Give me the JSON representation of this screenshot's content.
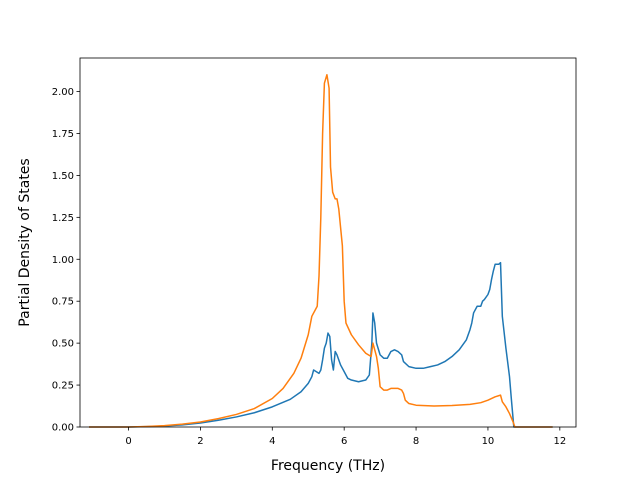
{
  "chart_data": {
    "type": "line",
    "title": "",
    "xlabel": "Frequency (THz)",
    "ylabel": "Partial Density of States",
    "xlim": [
      -1.35,
      12.45
    ],
    "ylim": [
      0.0,
      2.2
    ],
    "xticks": [
      0,
      2,
      4,
      6,
      8,
      10,
      12
    ],
    "xtick_labels": [
      "0",
      "2",
      "4",
      "6",
      "8",
      "10",
      "12"
    ],
    "yticks": [
      0.0,
      0.25,
      0.5,
      0.75,
      1.0,
      1.25,
      1.5,
      1.75,
      2.0
    ],
    "ytick_labels": [
      "0.00",
      "0.25",
      "0.50",
      "0.75",
      "1.00",
      "1.25",
      "1.50",
      "1.75",
      "2.00"
    ],
    "grid": false,
    "legend": "none",
    "series": [
      {
        "color": "#1f77b4",
        "points": [
          [
            -1.1,
            0.0
          ],
          [
            0.0,
            0.0
          ],
          [
            0.5,
            0.002
          ],
          [
            1.0,
            0.006
          ],
          [
            1.5,
            0.013
          ],
          [
            2.0,
            0.024
          ],
          [
            2.5,
            0.04
          ],
          [
            3.0,
            0.06
          ],
          [
            3.5,
            0.085
          ],
          [
            4.0,
            0.12
          ],
          [
            4.5,
            0.165
          ],
          [
            4.8,
            0.21
          ],
          [
            5.0,
            0.26
          ],
          [
            5.1,
            0.3
          ],
          [
            5.15,
            0.34
          ],
          [
            5.3,
            0.32
          ],
          [
            5.35,
            0.34
          ],
          [
            5.4,
            0.4
          ],
          [
            5.45,
            0.47
          ],
          [
            5.5,
            0.5
          ],
          [
            5.55,
            0.56
          ],
          [
            5.6,
            0.54
          ],
          [
            5.65,
            0.4
          ],
          [
            5.7,
            0.34
          ],
          [
            5.75,
            0.45
          ],
          [
            5.8,
            0.43
          ],
          [
            5.9,
            0.37
          ],
          [
            6.0,
            0.33
          ],
          [
            6.1,
            0.29
          ],
          [
            6.2,
            0.28
          ],
          [
            6.4,
            0.27
          ],
          [
            6.6,
            0.28
          ],
          [
            6.7,
            0.31
          ],
          [
            6.77,
            0.5
          ],
          [
            6.8,
            0.68
          ],
          [
            6.85,
            0.62
          ],
          [
            6.9,
            0.5
          ],
          [
            7.0,
            0.43
          ],
          [
            7.1,
            0.41
          ],
          [
            7.2,
            0.41
          ],
          [
            7.3,
            0.45
          ],
          [
            7.4,
            0.46
          ],
          [
            7.5,
            0.45
          ],
          [
            7.6,
            0.43
          ],
          [
            7.65,
            0.39
          ],
          [
            7.8,
            0.36
          ],
          [
            8.0,
            0.35
          ],
          [
            8.2,
            0.35
          ],
          [
            8.4,
            0.36
          ],
          [
            8.6,
            0.37
          ],
          [
            8.8,
            0.39
          ],
          [
            9.0,
            0.42
          ],
          [
            9.2,
            0.46
          ],
          [
            9.4,
            0.52
          ],
          [
            9.5,
            0.58
          ],
          [
            9.55,
            0.62
          ],
          [
            9.6,
            0.68
          ],
          [
            9.7,
            0.72
          ],
          [
            9.8,
            0.72
          ],
          [
            9.85,
            0.75
          ],
          [
            9.9,
            0.76
          ],
          [
            10.0,
            0.79
          ],
          [
            10.05,
            0.82
          ],
          [
            10.1,
            0.88
          ],
          [
            10.15,
            0.93
          ],
          [
            10.2,
            0.97
          ],
          [
            10.3,
            0.97
          ],
          [
            10.35,
            0.98
          ],
          [
            10.4,
            0.66
          ],
          [
            10.5,
            0.47
          ],
          [
            10.6,
            0.3
          ],
          [
            10.65,
            0.17
          ],
          [
            10.72,
            0.0
          ],
          [
            11.8,
            0.0
          ]
        ]
      },
      {
        "color": "#ff7f0e",
        "points": [
          [
            -1.1,
            0.0
          ],
          [
            0.0,
            0.0
          ],
          [
            0.5,
            0.003
          ],
          [
            1.0,
            0.008
          ],
          [
            1.5,
            0.017
          ],
          [
            2.0,
            0.03
          ],
          [
            2.5,
            0.05
          ],
          [
            3.0,
            0.075
          ],
          [
            3.5,
            0.11
          ],
          [
            4.0,
            0.17
          ],
          [
            4.3,
            0.23
          ],
          [
            4.6,
            0.32
          ],
          [
            4.8,
            0.41
          ],
          [
            5.0,
            0.55
          ],
          [
            5.1,
            0.66
          ],
          [
            5.25,
            0.72
          ],
          [
            5.3,
            0.9
          ],
          [
            5.35,
            1.25
          ],
          [
            5.4,
            1.75
          ],
          [
            5.45,
            2.05
          ],
          [
            5.52,
            2.1
          ],
          [
            5.58,
            2.02
          ],
          [
            5.62,
            1.55
          ],
          [
            5.68,
            1.4
          ],
          [
            5.75,
            1.36
          ],
          [
            5.8,
            1.36
          ],
          [
            5.85,
            1.3
          ],
          [
            5.9,
            1.19
          ],
          [
            5.95,
            1.08
          ],
          [
            6.0,
            0.75
          ],
          [
            6.05,
            0.62
          ],
          [
            6.2,
            0.55
          ],
          [
            6.4,
            0.49
          ],
          [
            6.6,
            0.44
          ],
          [
            6.75,
            0.42
          ],
          [
            6.8,
            0.5
          ],
          [
            6.85,
            0.46
          ],
          [
            6.9,
            0.42
          ],
          [
            6.95,
            0.35
          ],
          [
            7.0,
            0.24
          ],
          [
            7.1,
            0.22
          ],
          [
            7.2,
            0.22
          ],
          [
            7.3,
            0.23
          ],
          [
            7.5,
            0.23
          ],
          [
            7.6,
            0.22
          ],
          [
            7.65,
            0.2
          ],
          [
            7.7,
            0.16
          ],
          [
            7.8,
            0.14
          ],
          [
            8.0,
            0.13
          ],
          [
            8.5,
            0.125
          ],
          [
            9.0,
            0.128
          ],
          [
            9.5,
            0.135
          ],
          [
            9.8,
            0.145
          ],
          [
            10.0,
            0.16
          ],
          [
            10.2,
            0.18
          ],
          [
            10.35,
            0.19
          ],
          [
            10.4,
            0.15
          ],
          [
            10.5,
            0.12
          ],
          [
            10.6,
            0.08
          ],
          [
            10.7,
            0.03
          ],
          [
            10.75,
            0.0
          ],
          [
            11.8,
            0.0
          ]
        ]
      }
    ]
  }
}
